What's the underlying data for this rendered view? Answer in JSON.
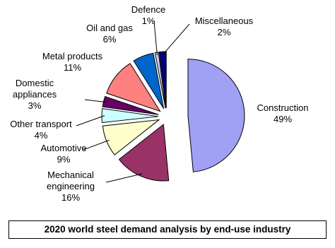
{
  "chart_data": {
    "type": "pie",
    "title": "2020 world steel demand analysis by end-use industry",
    "categories": [
      "Construction",
      "Mechanical engineering",
      "Automotive",
      "Other transport",
      "Domestic appliances",
      "Metal products",
      "Oil and gas",
      "Defence",
      "Miscellaneous"
    ],
    "values": [
      49,
      16,
      9,
      4,
      3,
      11,
      6,
      1,
      2
    ],
    "value_labels": [
      "49%",
      "16%",
      "9%",
      "4%",
      "3%",
      "11%",
      "6%",
      "1%",
      "2%"
    ],
    "colors": [
      "#a0a0f5",
      "#993366",
      "#ffffcc",
      "#ccffff",
      "#660066",
      "#ff8080",
      "#0066cc",
      "#ccccff",
      "#000080"
    ]
  }
}
